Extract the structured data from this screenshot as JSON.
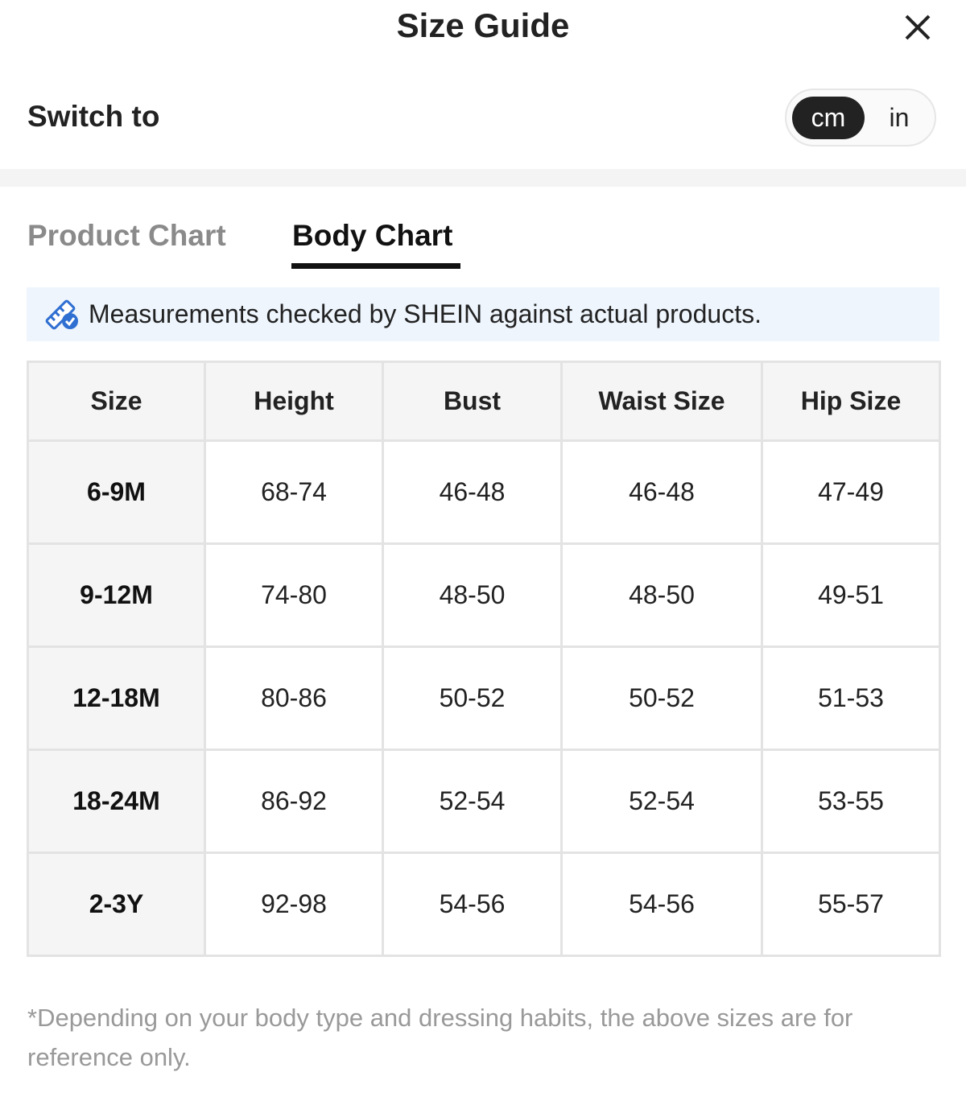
{
  "header": {
    "title": "Size Guide"
  },
  "switch": {
    "label": "Switch to",
    "options": [
      "cm",
      "in"
    ]
  },
  "tabs": [
    "Product Chart",
    "Body Chart"
  ],
  "notice": "Measurements checked by SHEIN against actual products.",
  "table": {
    "columns": [
      "Size",
      "Height",
      "Bust",
      "Waist Size",
      "Hip Size"
    ],
    "rows": [
      [
        "6-9M",
        "68-74",
        "46-48",
        "46-48",
        "47-49"
      ],
      [
        "9-12M",
        "74-80",
        "48-50",
        "48-50",
        "49-51"
      ],
      [
        "12-18M",
        "80-86",
        "50-52",
        "50-52",
        "51-53"
      ],
      [
        "18-24M",
        "86-92",
        "52-54",
        "52-54",
        "53-55"
      ],
      [
        "2-3Y",
        "92-98",
        "54-56",
        "54-56",
        "55-57"
      ]
    ]
  },
  "footnote": "*Depending on your body type and dressing habits, the above sizes are for reference only."
}
